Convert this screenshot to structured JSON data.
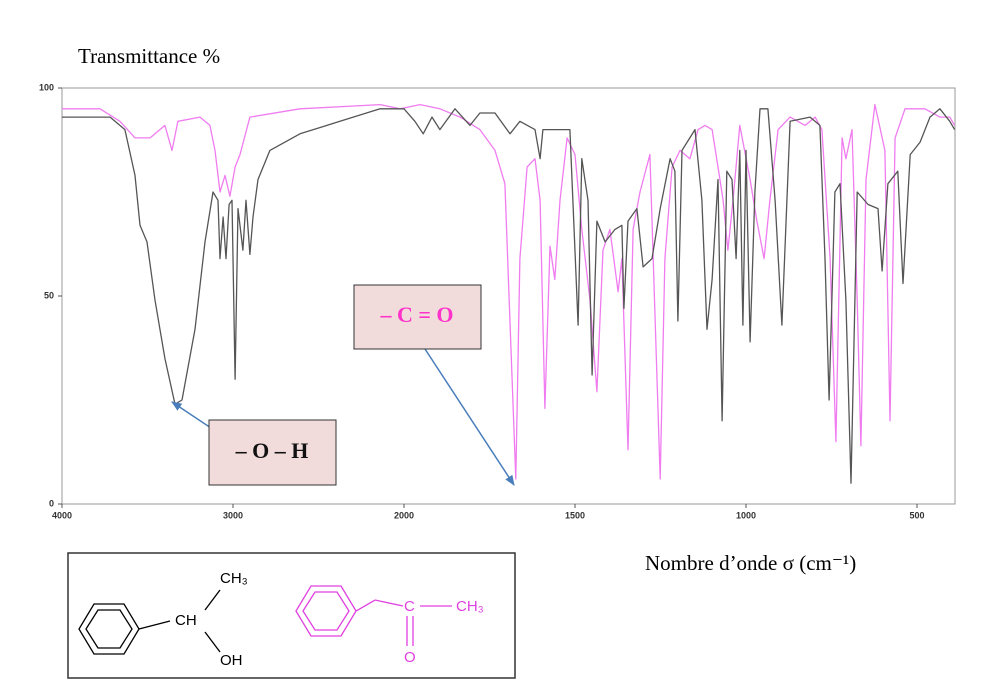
{
  "chart_data": {
    "type": "line",
    "title": "Transmittance %",
    "x_label": "Nombre d’onde σ (cm⁻¹)",
    "xlim": [
      4000,
      390
    ],
    "xticks": [
      4000,
      3000,
      2000,
      1500,
      1000,
      500
    ],
    "ylim": [
      0,
      100
    ],
    "yticks": [
      0,
      50,
      100
    ],
    "series": [
      {
        "color": "#555555",
        "x": [
          4000,
          3719,
          3632,
          3573,
          3544,
          3503,
          3456,
          3398,
          3339,
          3298,
          3222,
          3164,
          3117,
          3088,
          3076,
          3058,
          3041,
          3023,
          3006,
          2988,
          2971,
          2942,
          2924,
          2901,
          2883,
          2854,
          2784,
          2608,
          2374,
          2140,
          2000,
          1968,
          1944,
          1918,
          1895,
          1851,
          1807,
          1778,
          1734,
          1690,
          1661,
          1617,
          1602,
          1594,
          1544,
          1515,
          1491,
          1480,
          1462,
          1450,
          1436,
          1412,
          1383,
          1363,
          1357,
          1345,
          1319,
          1301,
          1275,
          1251,
          1222,
          1208,
          1199,
          1187,
          1149,
          1129,
          1114,
          1099,
          1082,
          1070,
          1056,
          1041,
          1029,
          1018,
          1009,
          1000,
          988,
          974,
          959,
          936,
          915,
          895,
          871,
          813,
          784,
          769,
          757,
          740,
          725,
          708,
          693,
          675,
          643,
          614,
          602,
          585,
          556,
          541,
          520,
          491,
          462,
          433,
          404,
          390
        ],
        "values": [
          93,
          93,
          90,
          79,
          67,
          63,
          49,
          35,
          24,
          25,
          42,
          63,
          75,
          73,
          59,
          69,
          59,
          72,
          73,
          30,
          71,
          61,
          73,
          60,
          69,
          78,
          85,
          89,
          92,
          95,
          95,
          92,
          89,
          93,
          90,
          95,
          91,
          94,
          94,
          89,
          92,
          90,
          83,
          90,
          90,
          90,
          43,
          83,
          73,
          31,
          68,
          63,
          66,
          67,
          47,
          68,
          71,
          57,
          59,
          71,
          83,
          80,
          44,
          85,
          90,
          73,
          42,
          54,
          78,
          20,
          80,
          78,
          59,
          85,
          43,
          85,
          39,
          75,
          95,
          95,
          73,
          43,
          92,
          93,
          91,
          59,
          25,
          75,
          77,
          49,
          5,
          75,
          72,
          71,
          56,
          77,
          80,
          53,
          84,
          87,
          93,
          95,
          92,
          90
        ]
      },
      {
        "color": "#f07cf0",
        "x": [
          4000,
          3778,
          3661,
          3573,
          3485,
          3398,
          3357,
          3322,
          3193,
          3135,
          3105,
          3076,
          3047,
          3018,
          2988,
          2959,
          2901,
          2608,
          2140,
          2023,
          1953,
          1895,
          1836,
          1778,
          1734,
          1705,
          1684,
          1673,
          1661,
          1640,
          1617,
          1602,
          1588,
          1573,
          1559,
          1544,
          1523,
          1500,
          1480,
          1456,
          1436,
          1418,
          1398,
          1374,
          1363,
          1345,
          1330,
          1310,
          1281,
          1263,
          1251,
          1237,
          1216,
          1193,
          1164,
          1140,
          1120,
          1099,
          1082,
          1067,
          1053,
          1038,
          1018,
          988,
          968,
          947,
          930,
          906,
          871,
          827,
          798,
          778,
          754,
          737,
          719,
          708,
          690,
          675,
          664,
          649,
          623,
          594,
          579,
          564,
          535,
          477,
          433,
          404,
          390
        ],
        "values": [
          95,
          95,
          92,
          88,
          88,
          91,
          85,
          92,
          93,
          91,
          85,
          75,
          79,
          74,
          81,
          84,
          93,
          95,
          96,
          95,
          96,
          95,
          93,
          90,
          85,
          77,
          30,
          6,
          59,
          81,
          83,
          73,
          23,
          62,
          54,
          73,
          88,
          84,
          66,
          49,
          27,
          61,
          66,
          51,
          59,
          13,
          66,
          75,
          84,
          37,
          6,
          59,
          81,
          85,
          83,
          90,
          91,
          90,
          81,
          73,
          61,
          73,
          91,
          78,
          68,
          59,
          73,
          90,
          93,
          91,
          93,
          90,
          59,
          15,
          88,
          83,
          90,
          49,
          14,
          78,
          96,
          85,
          20,
          88,
          95,
          95,
          93,
          93,
          91
        ]
      }
    ],
    "annotations": [
      {
        "text": "– C = O",
        "color": "#ff33cc"
      },
      {
        "text": "– O – H",
        "color": "#111111"
      }
    ]
  },
  "structures": [
    {
      "color": "#000000",
      "labels": [
        "CH₃",
        "CH",
        "OH"
      ]
    },
    {
      "color": "#e040e0",
      "labels": [
        "C",
        "CH₃",
        "O"
      ]
    }
  ]
}
